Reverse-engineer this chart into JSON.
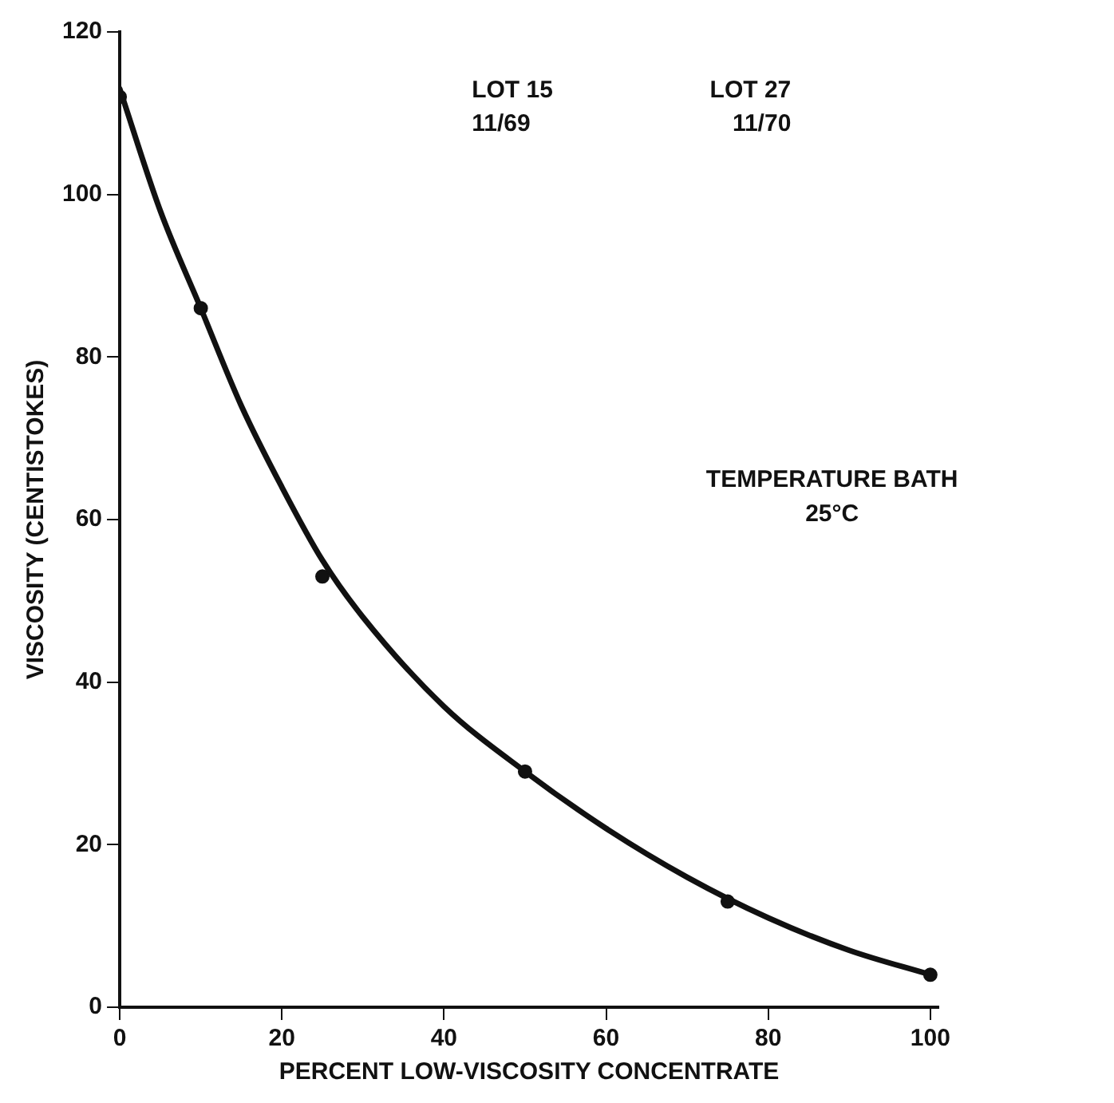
{
  "chart_data": {
    "type": "scatter",
    "xlabel": "PERCENT LOW-VISCOSITY CONCENTRATE",
    "ylabel": "VISCOSITY (CENTISTOKES)",
    "series": [
      {
        "color": "#111111",
        "x": [
          0,
          10,
          25,
          50,
          75,
          100
        ],
        "values": [
          112,
          86,
          53,
          29,
          13,
          4
        ]
      },
      {
        "type": "line",
        "marker": "none",
        "color": "#111111",
        "x": [
          0,
          5,
          10,
          15,
          20,
          25,
          30,
          40,
          50,
          60,
          70,
          80,
          90,
          100
        ],
        "values": [
          113,
          98,
          86,
          74,
          64,
          55,
          48,
          37,
          29,
          22,
          16,
          11,
          7,
          4
        ]
      }
    ],
    "xlim": [
      0,
      101
    ],
    "xticks": [
      0,
      20,
      40,
      60,
      80,
      100
    ],
    "ylim": [
      0,
      120
    ],
    "yticks": [
      0,
      20,
      40,
      60,
      80,
      100,
      120
    ],
    "grid": false,
    "legend": false,
    "marker": "circle",
    "line_style": "solid",
    "annotations": [
      "LOT 15",
      "LOT 27",
      "11/69",
      "11/70",
      "TEMPERATURE BATH",
      "25°C"
    ]
  }
}
